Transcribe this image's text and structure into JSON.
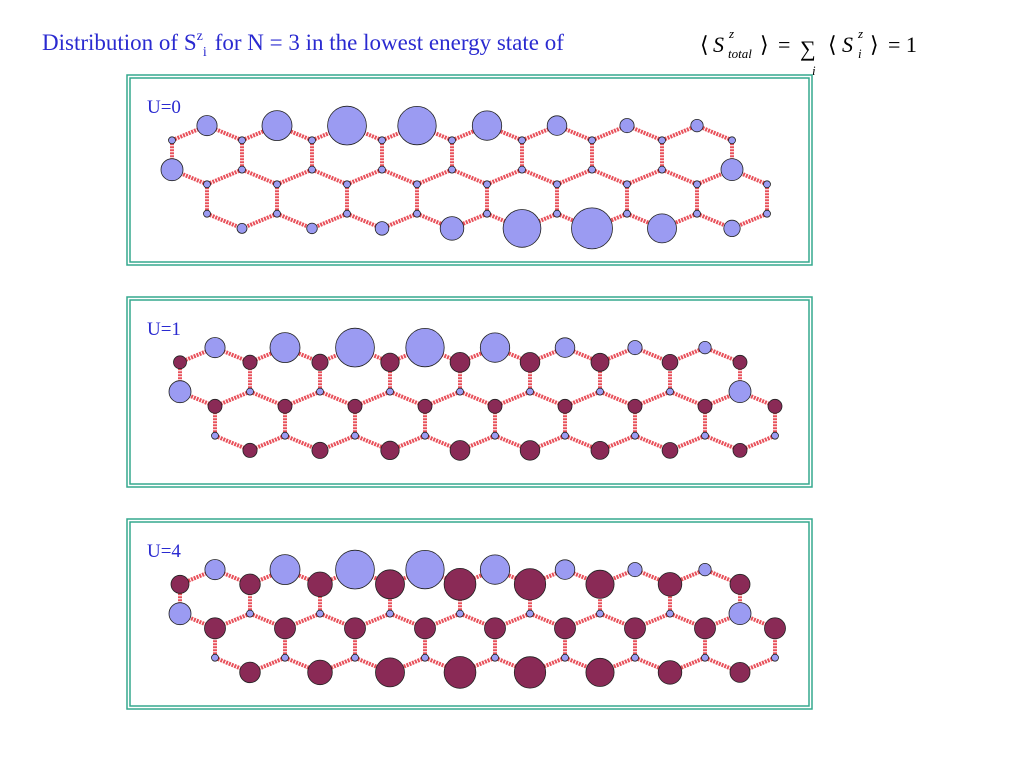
{
  "title": {
    "text": "Distribution of S",
    "sup": "z",
    "sub": "i",
    "rest": "for N = 3 in the lowest energy state of"
  },
  "formula": {
    "open": "⟨",
    "close": "⟩",
    "lhs": "S",
    "lhs_sup": "z",
    "lhs_sub": "total",
    "eq": "=",
    "sum": "∑",
    "sum_index": "i",
    "rhs": "S",
    "rhs_sup": "z",
    "rhs_sub": "i",
    "result": "= 1"
  },
  "panels": [
    {
      "label": "U=0"
    },
    {
      "label": "U=1"
    },
    {
      "label": "U=4"
    }
  ]
}
